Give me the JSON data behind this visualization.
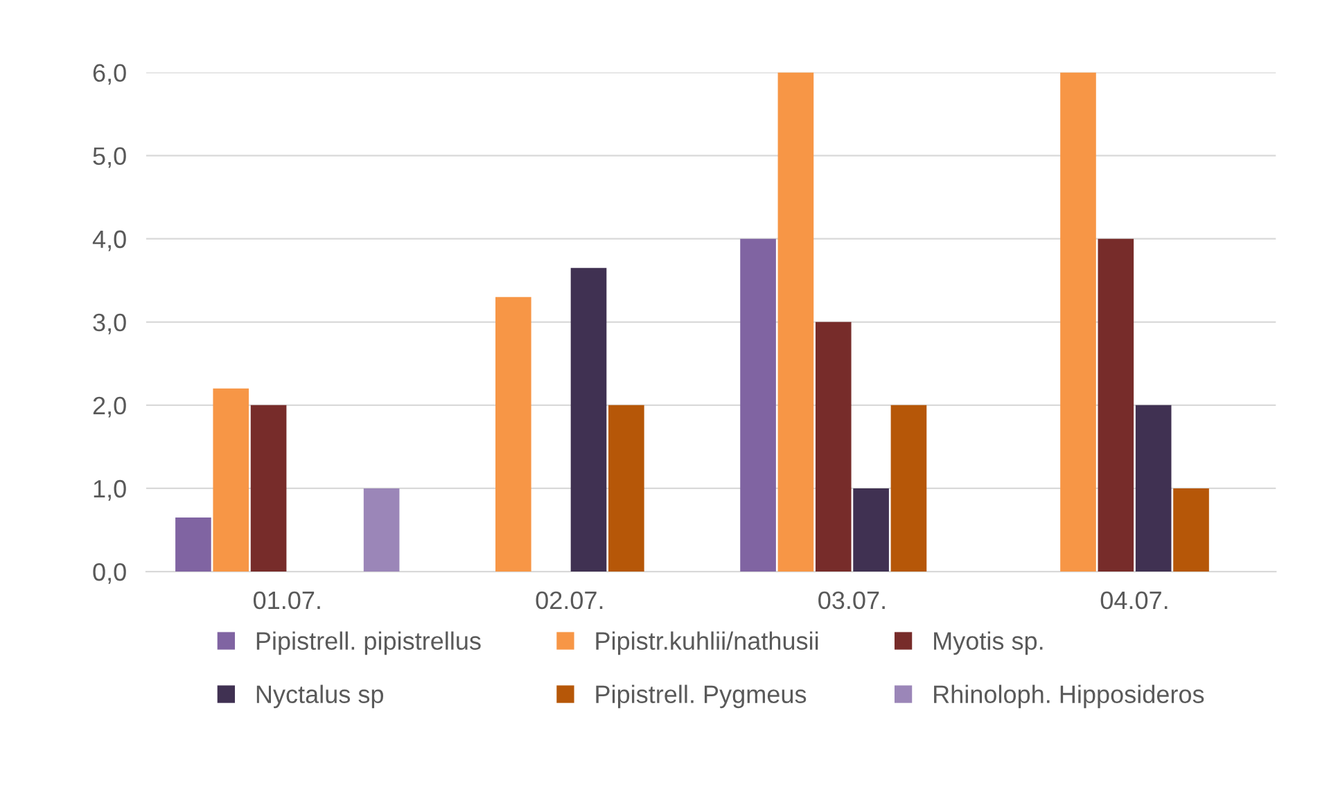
{
  "chart_data": {
    "type": "bar",
    "categories": [
      "01.07.",
      "02.07.",
      "03.07.",
      "04.07."
    ],
    "series": [
      {
        "name": "Pipistrell. pipistrellus",
        "color": "#8064a2",
        "values": [
          0.65,
          0,
          4.0,
          0
        ]
      },
      {
        "name": "Pipistr.kuhlii/nathusii",
        "color": "#f79646",
        "values": [
          2.2,
          3.3,
          6.0,
          6.0
        ]
      },
      {
        "name": "Myotis sp.",
        "color": "#772c2a",
        "values": [
          2.0,
          0,
          3.0,
          4.0
        ]
      },
      {
        "name": "Nyctalus sp",
        "color": "#403152",
        "values": [
          0,
          3.65,
          1.0,
          2.0
        ]
      },
      {
        "name": "Pipistrell. Pygmeus",
        "color": "#b65708",
        "values": [
          0,
          2.0,
          2.0,
          1.0
        ]
      },
      {
        "name": "Rhinoloph. Hipposideros",
        "color": "#9b86b8",
        "values": [
          1.0,
          0,
          0,
          0
        ]
      }
    ],
    "ylim": [
      0,
      6
    ],
    "yticks": [
      {
        "value": 0,
        "label": "0,0"
      },
      {
        "value": 1,
        "label": "1,0"
      },
      {
        "value": 2,
        "label": "2,0"
      },
      {
        "value": 3,
        "label": "3,0"
      },
      {
        "value": 4,
        "label": "4,0"
      },
      {
        "value": 5,
        "label": "5,0"
      },
      {
        "value": 6,
        "label": "6,0"
      }
    ],
    "grid": "y",
    "legend": "bottom"
  }
}
